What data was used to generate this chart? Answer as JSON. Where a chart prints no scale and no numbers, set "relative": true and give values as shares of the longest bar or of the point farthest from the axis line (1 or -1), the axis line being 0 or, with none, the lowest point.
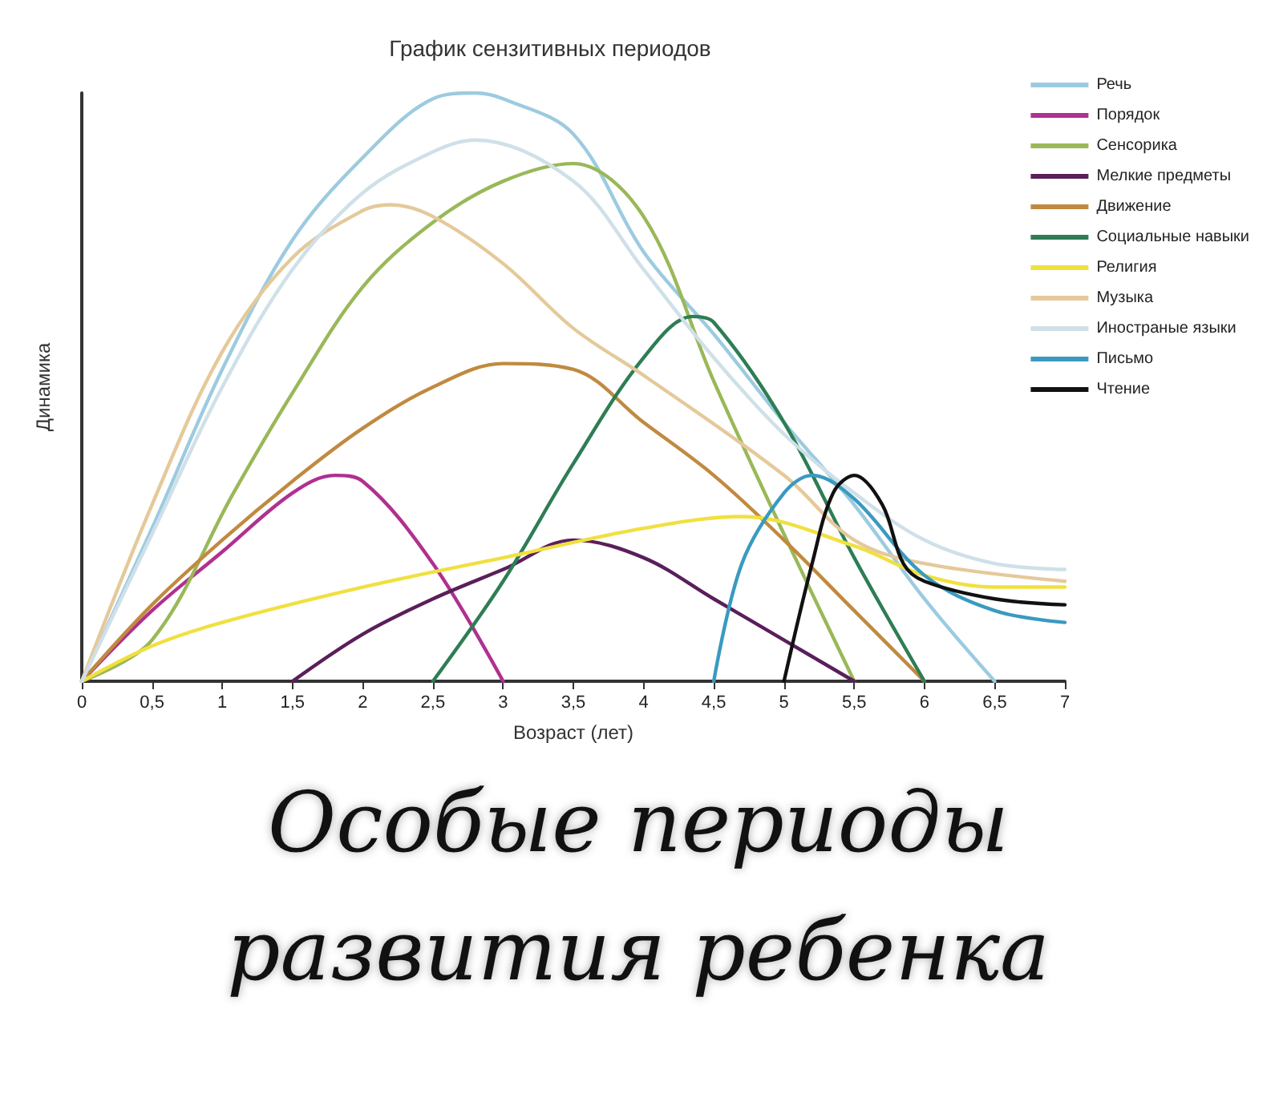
{
  "chart_data": {
    "type": "line",
    "title": "График сензитивных периодов",
    "xlabel": "Возраст (лет)",
    "ylabel": "Динамика",
    "relative": true,
    "legend": "right",
    "marker": "none",
    "line_style": "solid",
    "grid": false,
    "xlim": [
      0,
      7
    ],
    "xticks": [
      0,
      {
        "value": 0.5,
        "label": "0,5"
      },
      1,
      {
        "value": 1.5,
        "label": "1,5"
      },
      2,
      {
        "value": 2.5,
        "label": "2,5"
      },
      3,
      {
        "value": 3.5,
        "label": "3,5"
      },
      4,
      {
        "value": 4.5,
        "label": "4,5"
      },
      5,
      {
        "value": 5.5,
        "label": "5,5"
      },
      6,
      {
        "value": 6.5,
        "label": "6,5"
      },
      7
    ],
    "annotations": [
      "Особые периоды развития ребенка"
    ],
    "series": [
      {
        "name": "Речь",
        "color": "#9ccbe0",
        "x": [
          0,
          0.5,
          1,
          1.5,
          2,
          2.5,
          2.8,
          3,
          3.5,
          4,
          4.5,
          5,
          5.5,
          6,
          6.5
        ],
        "values": [
          0,
          0.26,
          0.53,
          0.75,
          0.89,
          0.99,
          1,
          0.99,
          0.93,
          0.73,
          0.59,
          0.44,
          0.3,
          0.14,
          0
        ]
      },
      {
        "name": "Порядок",
        "color": "#b03090",
        "x": [
          0,
          0.5,
          1,
          1.5,
          1.8,
          2,
          2.5,
          3
        ],
        "values": [
          0,
          0.12,
          0.22,
          0.32,
          0.35,
          0.34,
          0.2,
          0
        ]
      },
      {
        "name": "Сенсорика",
        "color": "#9ab858",
        "x": [
          0,
          0.5,
          1.08,
          1.5,
          2,
          2.5,
          3,
          3.5,
          4,
          4.5,
          5,
          5.5
        ],
        "values": [
          0,
          0.07,
          0.32,
          0.49,
          0.67,
          0.78,
          0.85,
          0.88,
          0.79,
          0.51,
          0.25,
          0
        ]
      },
      {
        "name": "Мелкие предметы",
        "color": "#5a1f5a",
        "x": [
          1.5,
          2,
          2.5,
          3,
          3.5,
          4,
          4.5,
          5,
          5.5
        ],
        "values": [
          0,
          0.08,
          0.14,
          0.19,
          0.24,
          0.21,
          0.14,
          0.07,
          0
        ]
      },
      {
        "name": "Движение",
        "color": "#c08a40",
        "x": [
          0,
          0.5,
          1,
          1.5,
          2,
          2.5,
          3,
          3.5,
          4,
          4.5,
          5,
          5.5,
          6
        ],
        "values": [
          0,
          0.13,
          0.24,
          0.34,
          0.43,
          0.5,
          0.54,
          0.53,
          0.44,
          0.35,
          0.24,
          0.12,
          0
        ]
      },
      {
        "name": "Социальные навыки",
        "color": "#2e7d55",
        "x": [
          2.5,
          3,
          3.5,
          4,
          4.35,
          4.5,
          5,
          5.5,
          6
        ],
        "values": [
          0,
          0.17,
          0.37,
          0.55,
          0.62,
          0.61,
          0.44,
          0.21,
          0
        ]
      },
      {
        "name": "Религия",
        "color": "#f0e040",
        "x": [
          0,
          0.5,
          1,
          2,
          3,
          4,
          4.7,
          5.5,
          6,
          6.5,
          7
        ],
        "values": [
          0,
          0.06,
          0.1,
          0.16,
          0.21,
          0.26,
          0.28,
          0.23,
          0.18,
          0.16,
          0.16
        ]
      },
      {
        "name": "Музыка",
        "color": "#e5c99a",
        "x": [
          0,
          0.5,
          1,
          1.5,
          2,
          2.2,
          2.5,
          3,
          3.5,
          4,
          5,
          5.5,
          6,
          7
        ],
        "values": [
          0,
          0.3,
          0.56,
          0.72,
          0.8,
          0.81,
          0.79,
          0.71,
          0.6,
          0.52,
          0.35,
          0.24,
          0.2,
          0.17
        ]
      },
      {
        "name": "Иностраные языки",
        "color": "#cfe0e8",
        "x": [
          0,
          0.5,
          1,
          1.5,
          2,
          2.5,
          2.8,
          3.5,
          4,
          4.5,
          5,
          5.5,
          6,
          6.5,
          7
        ],
        "values": [
          0,
          0.25,
          0.5,
          0.7,
          0.83,
          0.9,
          0.92,
          0.85,
          0.7,
          0.55,
          0.42,
          0.32,
          0.24,
          0.2,
          0.19
        ]
      },
      {
        "name": "Письмо",
        "color": "#3a9ac0",
        "x": [
          4.5,
          4.7,
          5,
          5.2,
          5.5,
          6,
          6.5,
          7
        ],
        "values": [
          0,
          0.2,
          0.32,
          0.35,
          0.31,
          0.18,
          0.12,
          0.1
        ]
      },
      {
        "name": "Чтение",
        "color": "#111111",
        "x": [
          5,
          5.2,
          5.35,
          5.5,
          5.7,
          5.85,
          6,
          6.5,
          7
        ],
        "values": [
          0,
          0.2,
          0.32,
          0.35,
          0.3,
          0.2,
          0.17,
          0.14,
          0.13
        ]
      }
    ]
  }
}
